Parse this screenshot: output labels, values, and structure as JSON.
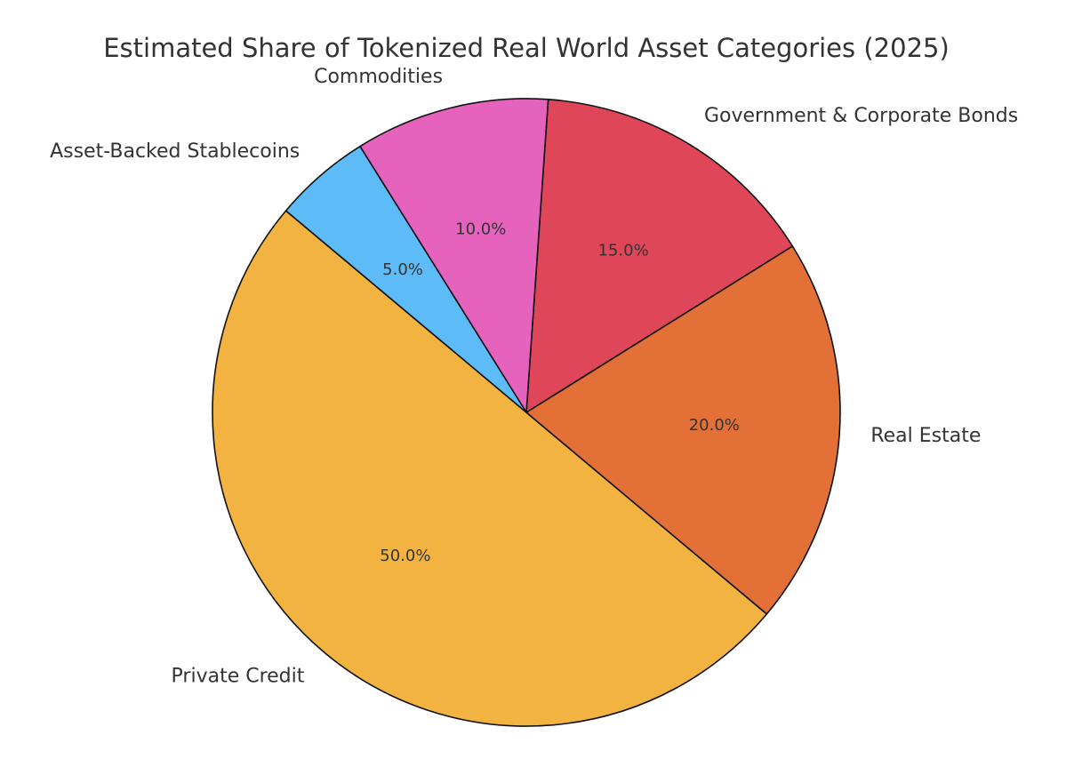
{
  "chart_data": {
    "type": "pie",
    "title": "Estimated Share of Tokenized Real World Asset Categories (2025)",
    "categories": [
      "Private Credit",
      "Real Estate",
      "Government & Corporate Bonds",
      "Commodities",
      "Asset-Backed Stablecoins"
    ],
    "values": [
      50,
      20,
      15,
      10,
      5
    ],
    "value_labels": [
      "50.0%",
      "20.0%",
      "15.0%",
      "10.0%",
      "5.0%"
    ],
    "colors": [
      "#F3B340",
      "#E27037",
      "#E0465A",
      "#E563BD",
      "#5DBBF8"
    ],
    "legend": "none"
  }
}
